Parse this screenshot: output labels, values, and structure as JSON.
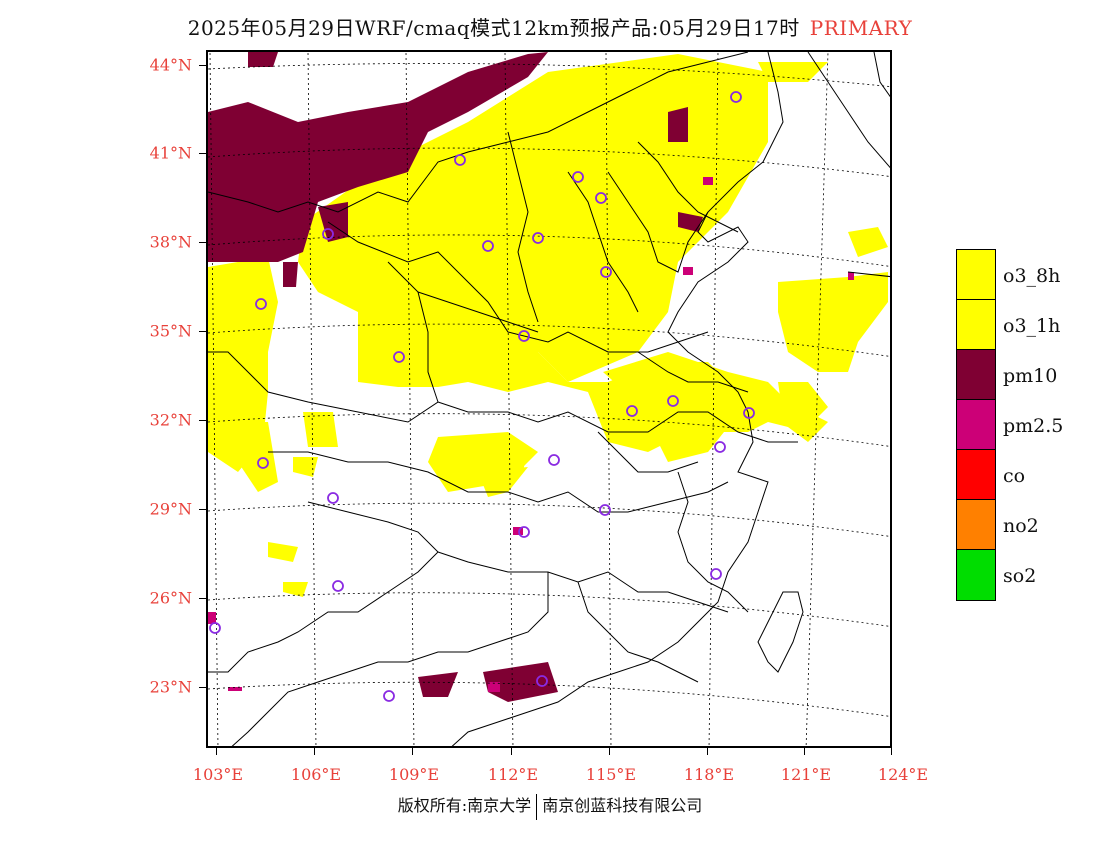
{
  "header": {
    "title": "2025年05月29日WRF/cmaq模式12km预报产品:05月29日17时",
    "tag": "PRIMARY"
  },
  "map": {
    "lat_labels": [
      "44°N",
      "41°N",
      "38°N",
      "35°N",
      "32°N",
      "29°N",
      "26°N",
      "23°N"
    ],
    "lon_labels": [
      "103°E",
      "106°E",
      "109°E",
      "112°E",
      "115°E",
      "118°E",
      "121°E",
      "124°E"
    ],
    "lat_values": [
      44,
      41,
      38,
      35,
      32,
      29,
      26,
      23
    ],
    "lon_values": [
      103,
      106,
      109,
      112,
      115,
      118,
      121,
      124
    ],
    "pollutant_colors": {
      "o3_8h": "#ffff00",
      "o3_1h": "#ffff00",
      "pm10": "#7f0033",
      "pm2.5": "#cc0077",
      "co": "#ff0000",
      "no2": "#ff8000",
      "so2": "#00dd00"
    },
    "station_marker_color": "#8a2be2",
    "boundary_color": "#000000",
    "gridline_style": "dotted"
  },
  "legend": {
    "items": [
      {
        "label": "o3_8h",
        "color": "#ffff00"
      },
      {
        "label": "o3_1h",
        "color": "#ffff00"
      },
      {
        "label": "pm10",
        "color": "#7f0033"
      },
      {
        "label": "pm2.5",
        "color": "#cc0077"
      },
      {
        "label": "co",
        "color": "#ff0000"
      },
      {
        "label": "no2",
        "color": "#ff8000"
      },
      {
        "label": "so2",
        "color": "#00dd00"
      }
    ]
  },
  "footer": {
    "left": "版权所有:南京大学",
    "right": "南京创蓝科技有限公司"
  }
}
